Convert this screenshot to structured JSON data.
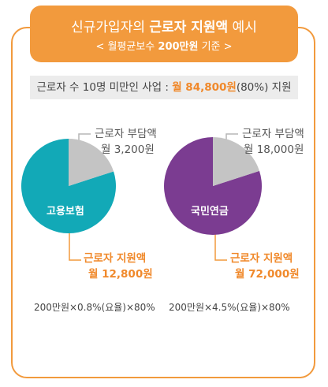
{
  "header": {
    "title_pre": "신규가입자의 ",
    "title_bold": "근로자 지원액",
    "title_post": " 예시",
    "subtitle_pre": "< 월평균보수 ",
    "subtitle_bold": "200만원",
    "subtitle_post": " 기준 >"
  },
  "banner": {
    "prefix": "근로자 수 10명 미만인 사업 : ",
    "amount": "월 84,800원",
    "suffix": "(80%) 지원"
  },
  "colors": {
    "accent": "#f29a3d",
    "employment_insurance": "#12a9b7",
    "national_pension": "#7b3c91",
    "worker_share": "#c4c4c4"
  },
  "chart_data": [
    {
      "type": "pie",
      "center_label": "고용보험",
      "slices": [
        {
          "label": "근로자 지원액",
          "amount": "월 12,800원",
          "value": 12800
        },
        {
          "label": "근로자 부담액",
          "amount": "월 3,200원",
          "value": 3200
        }
      ],
      "formula": "200만원×0.8%(요율)×80%"
    },
    {
      "type": "pie",
      "center_label": "국민연금",
      "slices": [
        {
          "label": "근로자 지원액",
          "amount": "월 72,000원",
          "value": 72000
        },
        {
          "label": "근로자 부담액",
          "amount": "월 18,000원",
          "value": 18000
        }
      ],
      "formula": "200만원×4.5%(요율)×80%"
    }
  ]
}
